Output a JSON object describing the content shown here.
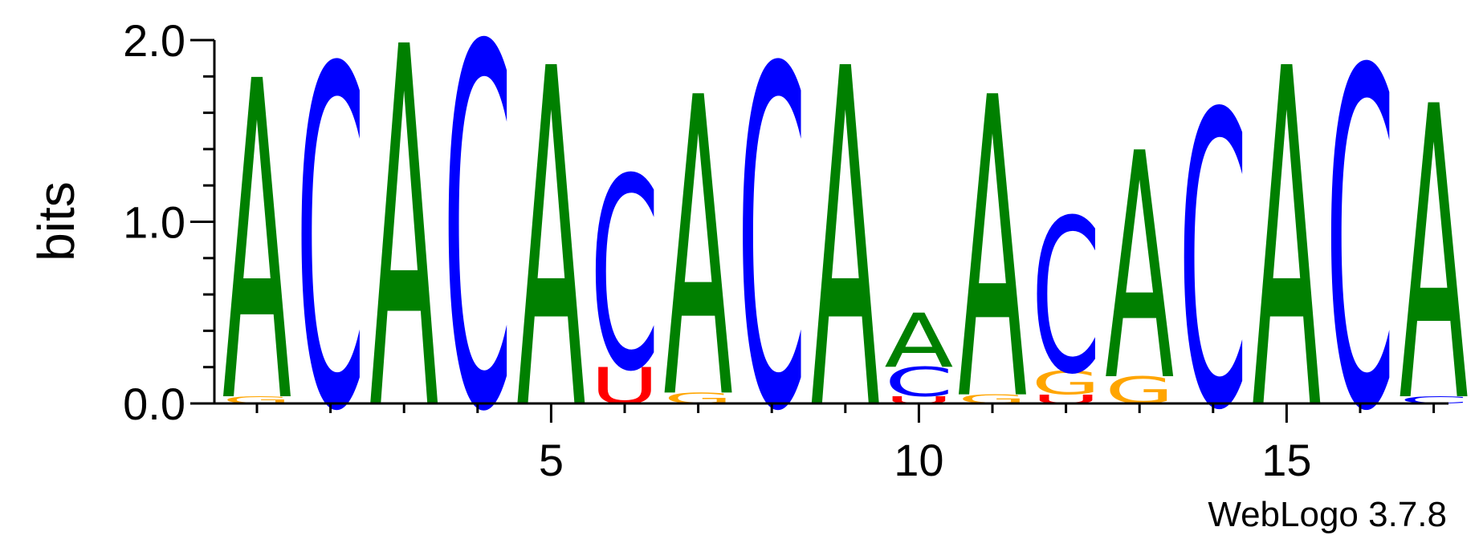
{
  "chart_data": {
    "type": "sequence-logo",
    "ylabel": "bits",
    "xlabel": "",
    "ylim": [
      0,
      2
    ],
    "y_ticks": [
      "0.0",
      "1.0",
      "2.0"
    ],
    "y_tick_values": [
      0,
      1,
      2
    ],
    "x_ticks": [
      "5",
      "10",
      "15"
    ],
    "x_tick_positions": [
      5,
      10,
      15
    ],
    "positions": [
      1,
      2,
      3,
      4,
      5,
      6,
      7,
      8,
      9,
      10,
      11,
      12,
      13,
      14,
      15,
      16,
      17
    ],
    "colors": {
      "A": "#008000",
      "C": "#0000ff",
      "G": "#ffa500",
      "U": "#ff0000"
    },
    "stacks": [
      [
        {
          "letter": "G",
          "bits": 0.04
        },
        {
          "letter": "A",
          "bits": 1.76
        }
      ],
      [
        {
          "letter": "C",
          "bits": 1.87
        }
      ],
      [
        {
          "letter": "A",
          "bits": 1.99
        }
      ],
      [
        {
          "letter": "C",
          "bits": 1.99
        }
      ],
      [
        {
          "letter": "A",
          "bits": 1.87
        }
      ],
      [
        {
          "letter": "U",
          "bits": 0.2
        },
        {
          "letter": "C",
          "bits": 1.06
        }
      ],
      [
        {
          "letter": "G",
          "bits": 0.06
        },
        {
          "letter": "A",
          "bits": 1.65
        }
      ],
      [
        {
          "letter": "C",
          "bits": 1.87
        }
      ],
      [
        {
          "letter": "A",
          "bits": 1.87
        }
      ],
      [
        {
          "letter": "U",
          "bits": 0.04
        },
        {
          "letter": "C",
          "bits": 0.16
        },
        {
          "letter": "A",
          "bits": 0.3
        }
      ],
      [
        {
          "letter": "G",
          "bits": 0.05
        },
        {
          "letter": "A",
          "bits": 1.66
        }
      ],
      [
        {
          "letter": "U",
          "bits": 0.05
        },
        {
          "letter": "G",
          "bits": 0.13
        },
        {
          "letter": "C",
          "bits": 0.85
        }
      ],
      [
        {
          "letter": "G",
          "bits": 0.15
        },
        {
          "letter": "A",
          "bits": 1.25
        }
      ],
      [
        {
          "letter": "C",
          "bits": 1.62
        }
      ],
      [
        {
          "letter": "A",
          "bits": 1.87
        }
      ],
      [
        {
          "letter": "C",
          "bits": 1.86
        }
      ],
      [
        {
          "letter": "C",
          "bits": 0.04
        },
        {
          "letter": "A",
          "bits": 1.62
        }
      ]
    ],
    "footer": "WebLogo 3.7.8"
  }
}
